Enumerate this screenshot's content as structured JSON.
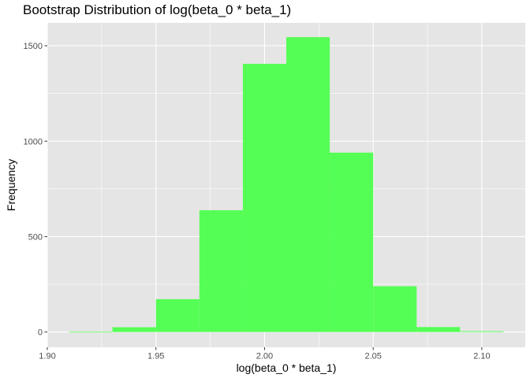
{
  "chart_data": {
    "type": "bar",
    "title": "Bootstrap Distribution of log(beta_0 * beta_1)",
    "xlabel": "log(beta_0 * beta_1)",
    "ylabel": "Frequency",
    "bin_edges": [
      1.91,
      1.93,
      1.95,
      1.97,
      1.99,
      2.01,
      2.03,
      2.05,
      2.07,
      2.09,
      2.11
    ],
    "values": [
      1,
      25,
      172,
      638,
      1405,
      1545,
      940,
      240,
      26,
      4
    ],
    "xlim": [
      1.9,
      2.12
    ],
    "ylim": [
      -80,
      1620
    ],
    "x_ticks": [
      1.9,
      1.95,
      2.0,
      2.05,
      2.1
    ],
    "x_tick_labels": [
      "1.90",
      "1.95",
      "2.00",
      "2.05",
      "2.10"
    ],
    "y_ticks": [
      0,
      500,
      1000,
      1500
    ],
    "y_tick_labels": [
      "0",
      "500",
      "1000",
      "1500"
    ],
    "bar_color": "#4DFF4D",
    "panel_background": "#E5E5E5",
    "grid_color": "#FFFFFF",
    "grid": true,
    "legend": false
  }
}
